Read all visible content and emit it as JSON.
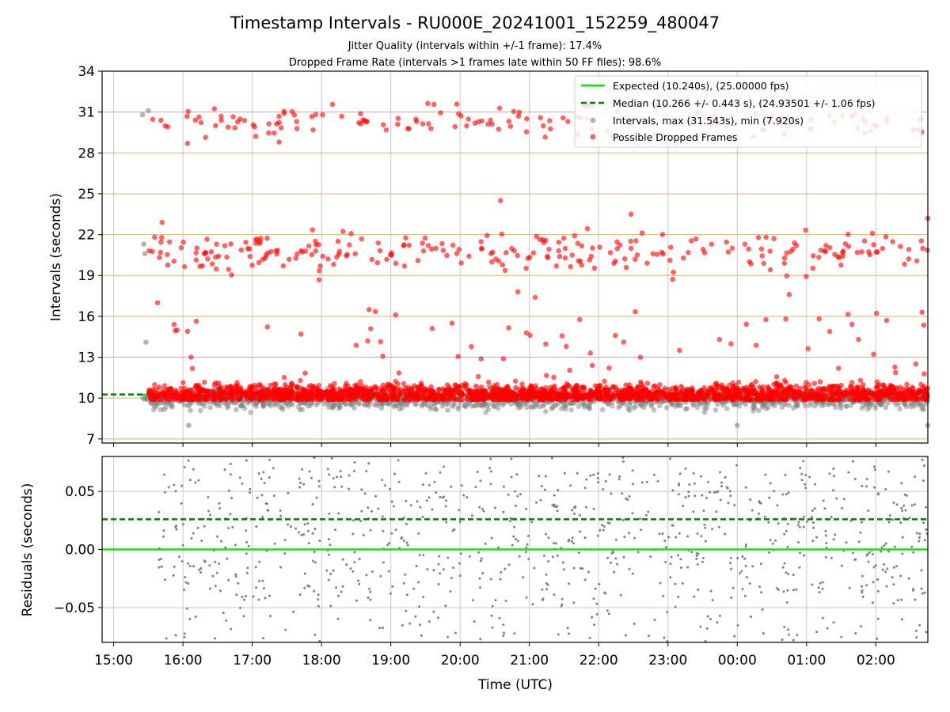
{
  "figure": {
    "title": "Timestamp Intervals - RU000E_20241001_152259_480047",
    "subtitle_1": "Jitter Quality (intervals within +/-1 frame): 17.4%",
    "subtitle_2": "Dropped Frame Rate (intervals >1 frames late within 50 FF files): 98.6%"
  },
  "colors": {
    "expected": "#00ee00",
    "median": "#007f00",
    "intervals": "#808080",
    "dropped": "#ff0000",
    "hgrid": "#d2b56a",
    "vgrid": "#c8c8c8"
  },
  "chart_data": [
    {
      "type": "scatter",
      "ylabel": "Intervals (seconds)",
      "ylim": [
        6.7,
        34
      ],
      "yticks": [
        "7",
        "10",
        "13",
        "16",
        "19",
        "22",
        "25",
        "28",
        "31",
        "34"
      ],
      "xticks": [
        "15:00",
        "16:00",
        "17:00",
        "18:00",
        "19:00",
        "20:00",
        "21:00",
        "22:00",
        "23:00",
        "00:00",
        "01:00",
        "02:00"
      ],
      "x_range": [
        "2024-10-01 14:50",
        "2024-10-02 02:45"
      ],
      "grid": true,
      "legend_position": "top-right",
      "series": [
        {
          "name": "Expected (10.240s), (25.00000 fps)",
          "kind": "hline",
          "value": 10.24
        },
        {
          "name": "Median (10.266 +/- 0.443 s), (24.93501 +/- 1.06 fps)",
          "kind": "hline-dashed",
          "value": 10.266,
          "x_end": "2024-10-01 15:25"
        },
        {
          "name": "Intervals, max (31.543s), min (7.920s)",
          "kind": "scatter",
          "max": 31.543,
          "min": 7.92,
          "clusters": [
            {
              "x": "2024-10-01 15:25",
              "y": 30.8
            },
            {
              "x": "2024-10-01 15:30",
              "y": 31.1
            },
            {
              "x": "2024-10-01 15:26",
              "y": 21.3
            },
            {
              "x": "2024-10-01 15:27",
              "y": 20.6
            },
            {
              "x": "2024-10-01 15:28",
              "y": 14.1
            },
            {
              "x": "2024-10-01 16:05",
              "y": 8.0
            },
            {
              "x": "2024-10-02 00:00",
              "y": 8.0
            },
            {
              "x": "2024-10-02 02:45",
              "y": 8.0
            }
          ]
        },
        {
          "name": "Possible Dropped Frames",
          "kind": "scatter",
          "bands": [
            {
              "y_center": 30.3,
              "spread": 0.6
            },
            {
              "y_center": 20.7,
              "spread": 0.7
            },
            {
              "y_center": 10.3,
              "spread": 0.35
            }
          ],
          "outliers": [
            {
              "x": "2024-10-01 15:42",
              "y": 22.9
            },
            {
              "x": "2024-10-01 15:38",
              "y": 17.0
            },
            {
              "x": "2024-10-01 16:04",
              "y": 14.9
            },
            {
              "x": "2024-10-01 16:07",
              "y": 13.0
            },
            {
              "x": "2024-10-01 16:04",
              "y": 28.7
            },
            {
              "x": "2024-10-01 20:35",
              "y": 24.5
            },
            {
              "x": "2024-10-01 22:28",
              "y": 23.5
            },
            {
              "x": "2024-10-01 21:05",
              "y": 17.4
            },
            {
              "x": "2024-10-01 20:50",
              "y": 17.8
            },
            {
              "x": "2024-10-02 00:45",
              "y": 17.6
            },
            {
              "x": "2024-10-02 00:42",
              "y": 15.8
            },
            {
              "x": "2024-10-01 19:53",
              "y": 15.5
            },
            {
              "x": "2024-10-01 18:40",
              "y": 14.2
            },
            {
              "x": "2024-10-01 23:10",
              "y": 13.5
            },
            {
              "x": "2024-10-02 01:45",
              "y": 14.3
            },
            {
              "x": "2024-10-02 02:40",
              "y": 16.3
            },
            {
              "x": "2024-10-02 02:45",
              "y": 23.2
            }
          ]
        }
      ]
    },
    {
      "type": "scatter",
      "ylabel": "Residuals (seconds)",
      "ylim": [
        -0.08,
        0.08
      ],
      "yticks": [
        "−0.05",
        "0.00",
        "0.05"
      ],
      "grid": true,
      "series": [
        {
          "name": "Expected",
          "kind": "hline",
          "value": 0.0
        },
        {
          "name": "Median",
          "kind": "hline-dashed",
          "value": 0.026
        },
        {
          "name": "Residuals",
          "kind": "scatter",
          "range": [
            -0.08,
            0.08
          ]
        }
      ]
    }
  ],
  "xlabel": "Time (UTC)"
}
